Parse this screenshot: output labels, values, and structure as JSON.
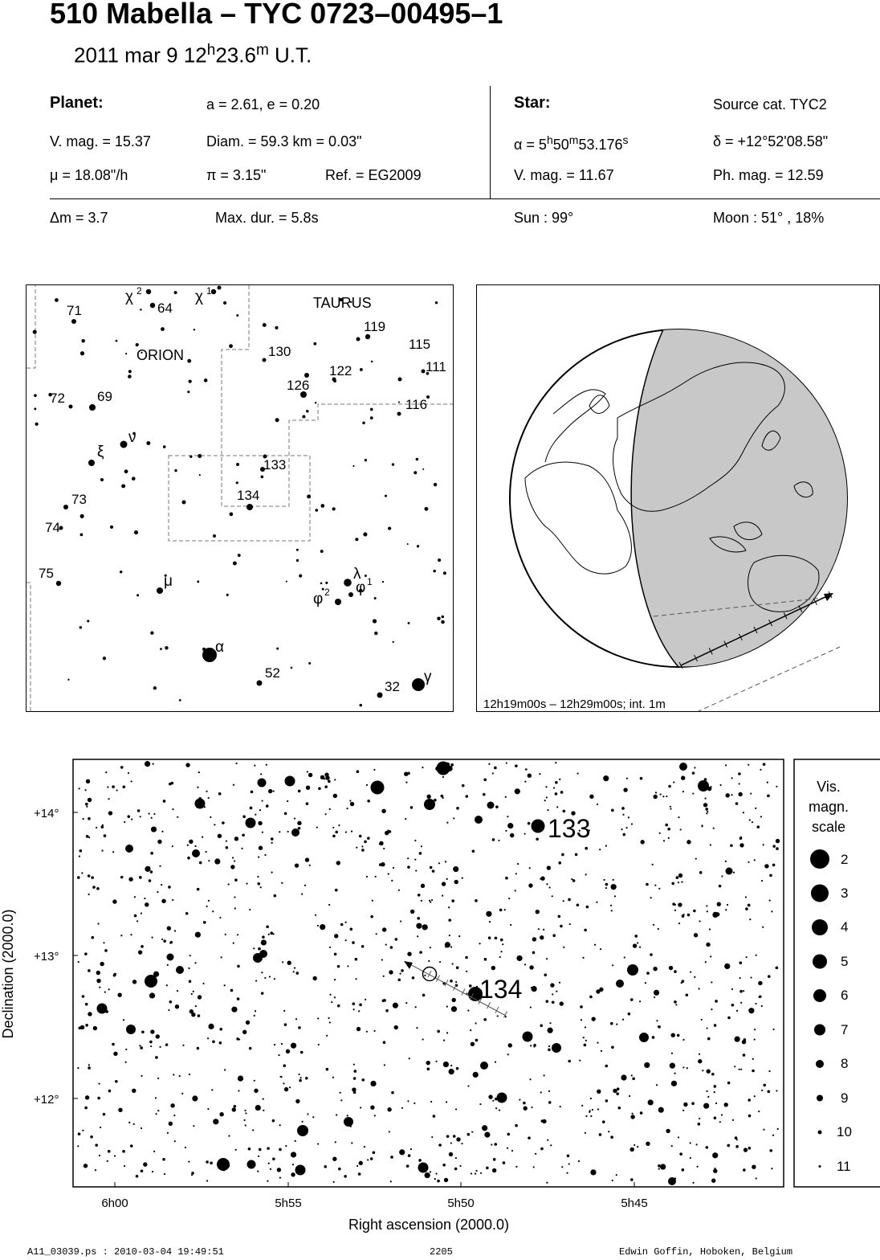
{
  "header": {
    "title": "510 Mabella  –  TYC 0723–00495–1",
    "date": "2011 mar  9  12",
    "h": "h",
    "min": "23.6",
    "m": "m",
    "ut": " U.T."
  },
  "planet": {
    "heading": "Planet:",
    "orbit": "a = 2.61, e = 0.20",
    "vmag": "V. mag. = 15.37",
    "diam": "Diam. = 59.3 km = 0.03\"",
    "mu": "μ =  18.08\"/h",
    "pi": "π =  3.15\"",
    "ref": "Ref. = EG2009"
  },
  "star": {
    "heading": "Star:",
    "source": "Source cat.  TYC2",
    "alpha_label": "α =  5",
    "alpha_h": "h",
    "alpha_mm": "50",
    "alpha_m": "m",
    "alpha_ss": "53.176",
    "alpha_s": "s",
    "delta": "δ = +12°52'08.58\"",
    "vmag": "V. mag. = 11.67",
    "phmag": "Ph. mag. = 12.59"
  },
  "event": {
    "dm": "Δm = 3.7",
    "maxdur": "Max. dur. = 5.8s",
    "sun": "Sun :  99°",
    "moon": "Moon :  51° , 18%"
  },
  "finder": {
    "constellations": [
      "TAURUS",
      "ORION"
    ],
    "labels": [
      {
        "t": "71"
      },
      {
        "t": "64"
      },
      {
        "t": "130"
      },
      {
        "t": "119"
      },
      {
        "t": "115"
      },
      {
        "t": "111"
      },
      {
        "t": "122"
      },
      {
        "t": "126"
      },
      {
        "t": "116"
      },
      {
        "t": "72"
      },
      {
        "t": "69"
      },
      {
        "t": "133"
      },
      {
        "t": "134"
      },
      {
        "t": "73"
      },
      {
        "t": "74"
      },
      {
        "t": "75"
      },
      {
        "t": "52"
      },
      {
        "t": "32"
      }
    ],
    "greek": [
      {
        "t": "χ"
      },
      {
        "t": "χ"
      },
      {
        "t": "ν"
      },
      {
        "t": "ξ"
      },
      {
        "t": "μ"
      },
      {
        "t": "λ"
      },
      {
        "t": "φ"
      },
      {
        "t": "φ"
      },
      {
        "t": "α"
      },
      {
        "t": "γ"
      }
    ],
    "superscripts": [
      "2",
      "1",
      "2",
      "1"
    ]
  },
  "globe": {
    "caption": "12h19m00s – 12h29m00s; int.  1m"
  },
  "chart_data": {
    "type": "scatter",
    "xlabel": "Right ascension (2000.0)",
    "ylabel": "Declination (2000.0)",
    "xticks": [
      "6h00",
      "5h55",
      "5h50",
      "5h45"
    ],
    "yticks": [
      "+14°",
      "+13°",
      "+12°"
    ],
    "labels": [
      "133",
      "134"
    ],
    "legend_title": [
      "Vis.",
      "magn.",
      "scale"
    ],
    "legend_mags": [
      "2",
      "3",
      "4",
      "5",
      "6",
      "7",
      "8",
      "9",
      "10",
      "11"
    ]
  },
  "footer": {
    "left": "A11_03039.ps : 2010-03-04 19:49:51",
    "mid": "2205",
    "right": "Edwin Goffin, Hoboken, Belgium"
  }
}
